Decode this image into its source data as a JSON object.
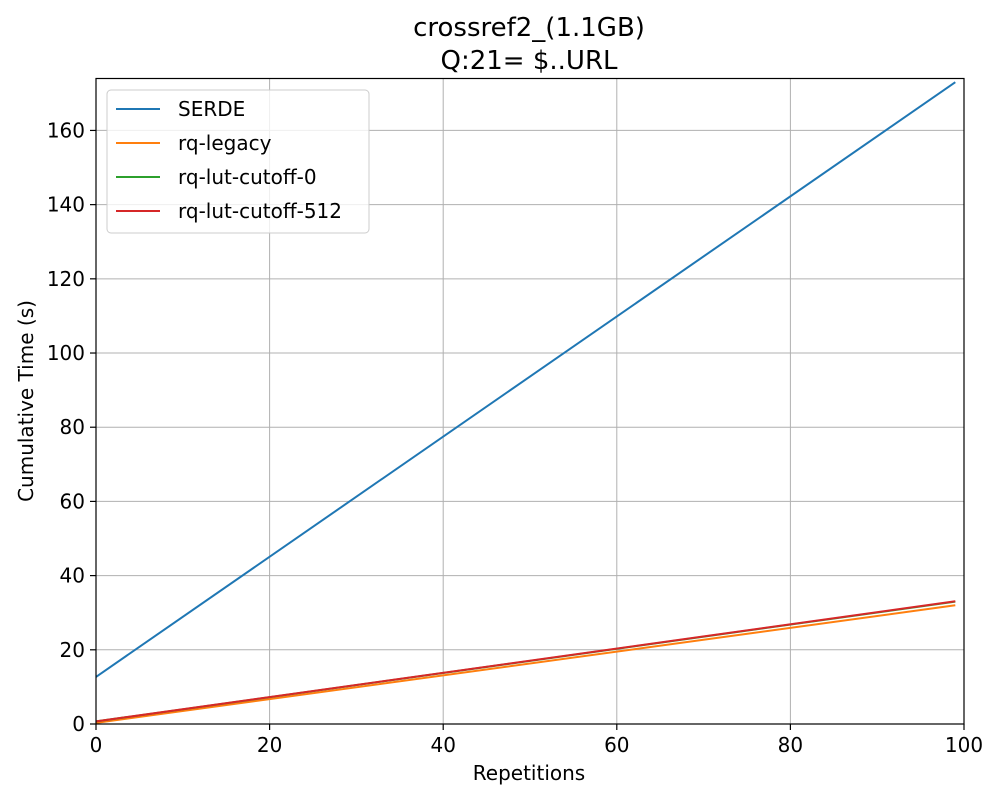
{
  "chart_data": {
    "type": "line",
    "title": "crossref2_(1.1GB)",
    "subtitle": "Q:21= $..URL",
    "xlabel": "Repetitions",
    "ylabel": "Cumulative Time (s)",
    "xlim": [
      0,
      100
    ],
    "ylim": [
      0,
      174
    ],
    "xticks": [
      0,
      20,
      40,
      60,
      80,
      100
    ],
    "yticks": [
      0,
      20,
      40,
      60,
      80,
      100,
      120,
      140,
      160
    ],
    "grid": true,
    "legend_position": "upper-left",
    "series": [
      {
        "name": "SERDE",
        "color": "#1f77b4",
        "x": [
          0,
          99
        ],
        "y": [
          12.7,
          173.0
        ]
      },
      {
        "name": "rq-legacy",
        "color": "#ff7f0e",
        "x": [
          0,
          99
        ],
        "y": [
          0.3,
          32.0
        ]
      },
      {
        "name": "rq-lut-cutoff-0",
        "color": "#2ca02c",
        "x": [
          0,
          99
        ],
        "y": [
          0.7,
          33.0
        ]
      },
      {
        "name": "rq-lut-cutoff-512",
        "color": "#d62728",
        "x": [
          0,
          99
        ],
        "y": [
          0.7,
          33.1
        ]
      }
    ]
  }
}
